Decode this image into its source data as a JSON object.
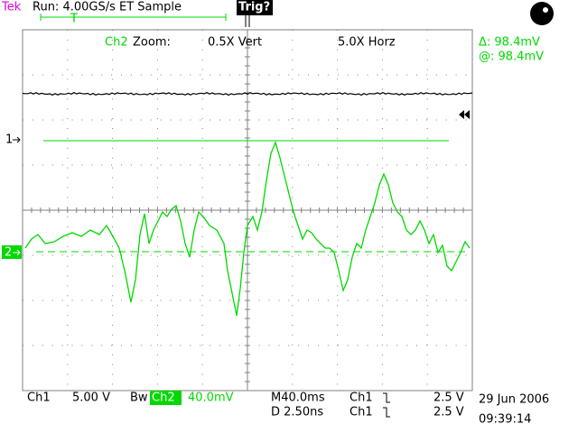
{
  "header": {
    "brand": "Tek",
    "status": "Run: 4.00GS/s ET Sample",
    "trigger": "Trig?",
    "trigger_marker": "T"
  },
  "zoom": {
    "channel": "Ch2",
    "label": "Zoom:",
    "vertical": "0.5X Vert",
    "horizontal": "5.0X Horz"
  },
  "cursors": {
    "delta": "Δ: 98.4mV",
    "at": "@: 98.4mV"
  },
  "markers": {
    "ch1": "1",
    "ch2": "2"
  },
  "footer": {
    "ch1_label": "Ch1",
    "ch1_scale": "5.00 V",
    "bandwidth": "Bw",
    "ch2_label": "Ch2",
    "ch2_scale": "40.0mV",
    "main_timebase": "M40.0ms",
    "trig_source_1": "Ch1",
    "trig_level_1": "2.5 V",
    "delay": "D 2.50ns",
    "trig_source_2": "Ch1",
    "trig_level_2": "2.5 V",
    "date": "29 Jun 2006",
    "time": "09:39:14"
  }
}
